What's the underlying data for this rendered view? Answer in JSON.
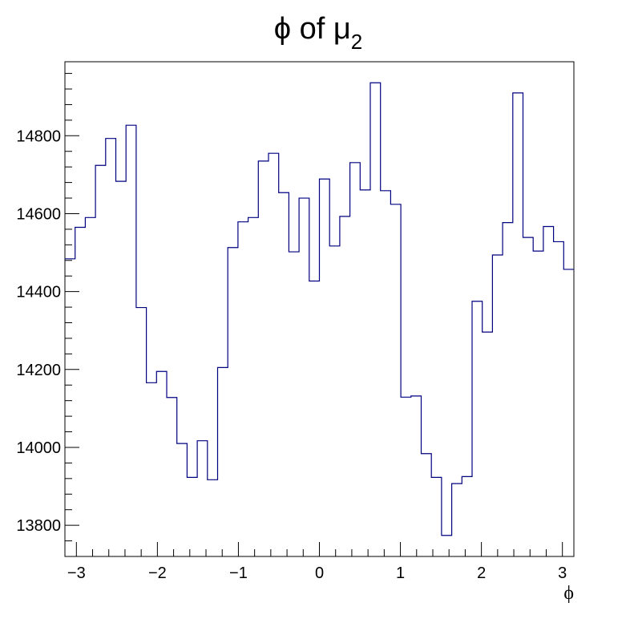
{
  "chart_data": {
    "type": "histogram",
    "title": {
      "prefix": "ϕ of μ",
      "subscript": "2"
    },
    "xlabel": "ϕ",
    "ylabel": "",
    "xlim": [
      -3.1416,
      3.1416
    ],
    "ylim": [
      13720,
      14990
    ],
    "bins": 50,
    "xticks": [
      -3,
      -2,
      -1,
      0,
      1,
      2,
      3
    ],
    "xtick_labels": [
      "−3",
      "−2",
      "−1",
      "0",
      "1",
      "2",
      "3"
    ],
    "yticks": [
      13800,
      14000,
      14200,
      14400,
      14600,
      14800
    ],
    "ytick_labels": [
      "13800",
      "14000",
      "14200",
      "14400",
      "14600",
      "14800"
    ],
    "values": [
      14484,
      14565,
      14590,
      14724,
      14793,
      14683,
      14827,
      14359,
      14166,
      14195,
      14128,
      14010,
      13923,
      14017,
      13917,
      14205,
      14513,
      14579,
      14590,
      14735,
      14755,
      14654,
      14502,
      14640,
      14427,
      14689,
      14517,
      14593,
      14731,
      14661,
      14936,
      14659,
      14624,
      14129,
      14132,
      13984,
      13923,
      13774,
      13907,
      13925,
      14375,
      14296,
      14494,
      14577,
      14910,
      14539,
      14504,
      14567,
      14528,
      14457
    ],
    "line_color": "#000080",
    "grid": false
  }
}
